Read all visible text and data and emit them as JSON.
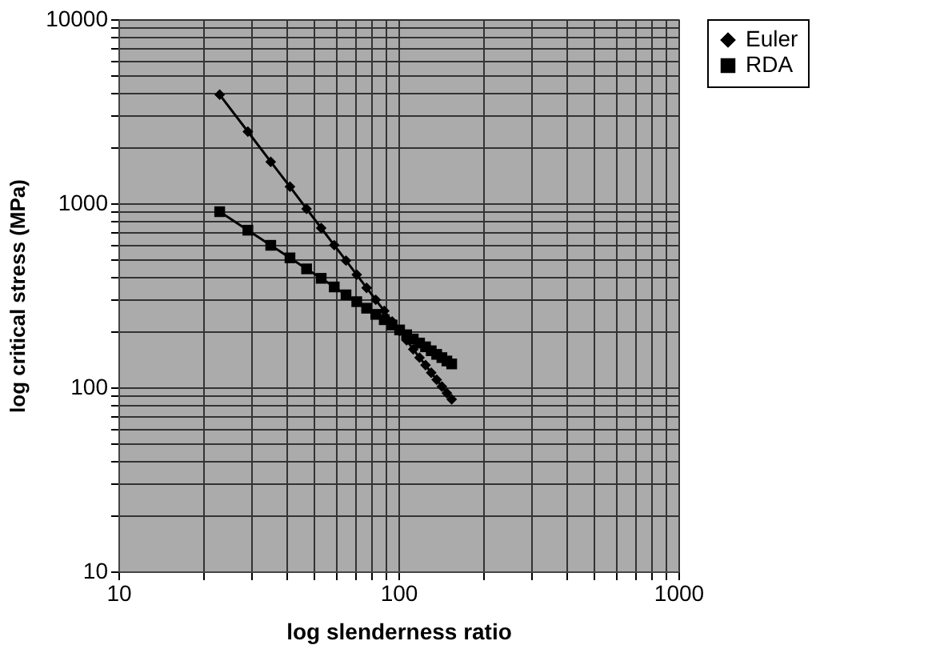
{
  "chart_data": {
    "type": "line",
    "xlabel": "log slenderness ratio",
    "ylabel": "log critical stress (MPa)",
    "log": "xy",
    "grid": true,
    "legend": "right",
    "x": [
      23,
      29,
      35,
      41,
      47,
      53,
      59,
      65,
      71,
      77,
      83,
      89,
      95,
      101,
      107,
      113,
      119,
      125,
      131,
      137,
      143,
      149,
      155
    ],
    "series": [
      {
        "name": "Euler",
        "color": "#000000",
        "marker": "diamond",
        "values": [
          3890,
          2450,
          1680,
          1230,
          933,
          733,
          592,
          488,
          409,
          347,
          299,
          260,
          228,
          202,
          180,
          161,
          145,
          132,
          120,
          110,
          101,
          93,
          86
        ]
      },
      {
        "name": "RDA",
        "color": "#000000",
        "marker": "square",
        "values": [
          900,
          714,
          591,
          505,
          440,
          391,
          351,
          318,
          292,
          269,
          249,
          233,
          218,
          205,
          193,
          183,
          174,
          166,
          158,
          151,
          145,
          139,
          134
        ]
      }
    ],
    "xlim": [
      10,
      1000
    ],
    "xticks": [
      10,
      {
        "value": 20,
        "label": null
      },
      {
        "value": 30,
        "label": null
      },
      {
        "value": 40,
        "label": null
      },
      {
        "value": 50,
        "label": null
      },
      {
        "value": 60,
        "label": null
      },
      {
        "value": 70,
        "label": null
      },
      {
        "value": 80,
        "label": null
      },
      {
        "value": 90,
        "label": null
      },
      100,
      {
        "value": 200,
        "label": null
      },
      {
        "value": 300,
        "label": null
      },
      {
        "value": 400,
        "label": null
      },
      {
        "value": 500,
        "label": null
      },
      {
        "value": 600,
        "label": null
      },
      {
        "value": 700,
        "label": null
      },
      {
        "value": 800,
        "label": null
      },
      {
        "value": 900,
        "label": null
      },
      1000
    ],
    "ylim": [
      10,
      10000
    ],
    "yticks": [
      10,
      {
        "value": 20,
        "label": null
      },
      {
        "value": 30,
        "label": null
      },
      {
        "value": 40,
        "label": null
      },
      {
        "value": 50,
        "label": null
      },
      {
        "value": 60,
        "label": null
      },
      {
        "value": 70,
        "label": null
      },
      {
        "value": 80,
        "label": null
      },
      {
        "value": 90,
        "label": null
      },
      100,
      {
        "value": 200,
        "label": null
      },
      {
        "value": 300,
        "label": null
      },
      {
        "value": 400,
        "label": null
      },
      {
        "value": 500,
        "label": null
      },
      {
        "value": 600,
        "label": null
      },
      {
        "value": 700,
        "label": null
      },
      {
        "value": 800,
        "label": null
      },
      {
        "value": 900,
        "label": null
      },
      1000,
      {
        "value": 2000,
        "label": null
      },
      {
        "value": 3000,
        "label": null
      },
      {
        "value": 4000,
        "label": null
      },
      {
        "value": 5000,
        "label": null
      },
      {
        "value": 6000,
        "label": null
      },
      {
        "value": 7000,
        "label": null
      },
      {
        "value": 8000,
        "label": null
      },
      {
        "value": 9000,
        "label": null
      },
      10000
    ]
  }
}
